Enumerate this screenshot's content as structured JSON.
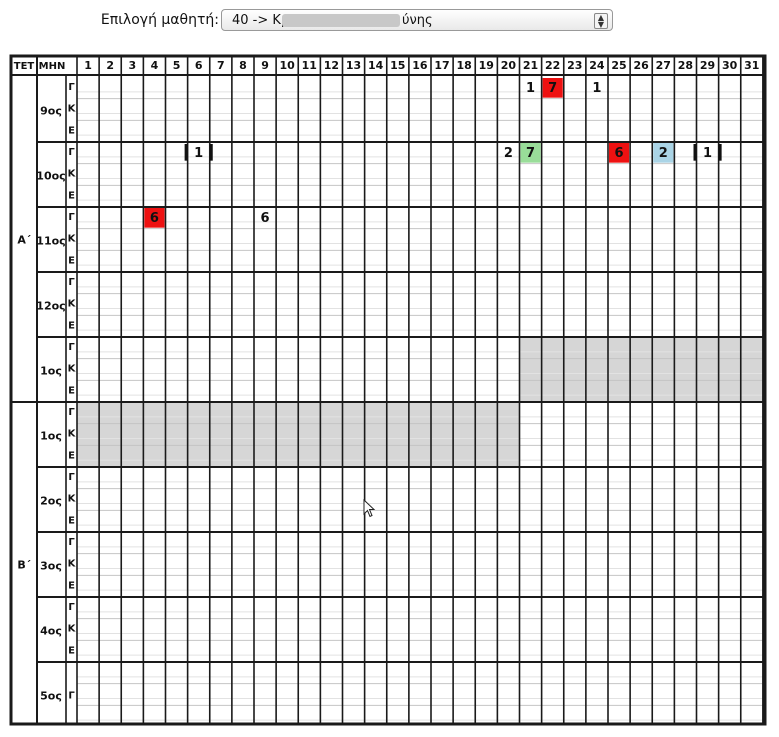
{
  "student_select": {
    "label": "Επιλογή μαθητή:",
    "value_prefix": "40 -> Κρ",
    "value_suffix": "ύνης"
  },
  "header": {
    "term": "ΤΕΤ",
    "month": "ΜΗΝ",
    "days": [
      "1",
      "2",
      "3",
      "4",
      "5",
      "6",
      "7",
      "8",
      "9",
      "10",
      "11",
      "12",
      "13",
      "14",
      "15",
      "16",
      "17",
      "18",
      "19",
      "20",
      "21",
      "22",
      "23",
      "24",
      "25",
      "26",
      "27",
      "28",
      "29",
      "30",
      "31"
    ]
  },
  "terms": [
    {
      "label": "Α΄",
      "months": [
        "9ος",
        "10ος",
        "11ος",
        "12ος",
        "1ος"
      ]
    },
    {
      "label": "Β΄",
      "months": [
        "1ος",
        "2ος",
        "3ος",
        "4ος",
        "5ος"
      ]
    }
  ],
  "sub_rows": [
    "Γ",
    "Κ",
    "Ε"
  ],
  "marks": [
    {
      "month": 0,
      "sub": 0,
      "day": 21,
      "value": "1",
      "style": "plain"
    },
    {
      "month": 0,
      "sub": 0,
      "day": 22,
      "value": "7",
      "style": "red"
    },
    {
      "month": 0,
      "sub": 0,
      "day": 24,
      "value": "1",
      "style": "plain"
    },
    {
      "month": 1,
      "sub": 0,
      "day": 6,
      "value": "1",
      "style": "bracket"
    },
    {
      "month": 1,
      "sub": 0,
      "day": 20,
      "value": "2",
      "style": "plain"
    },
    {
      "month": 1,
      "sub": 0,
      "day": 21,
      "value": "7",
      "style": "green"
    },
    {
      "month": 1,
      "sub": 0,
      "day": 25,
      "value": "6",
      "style": "red"
    },
    {
      "month": 1,
      "sub": 0,
      "day": 27,
      "value": "2",
      "style": "blue"
    },
    {
      "month": 1,
      "sub": 0,
      "day": 29,
      "value": "1",
      "style": "bracket"
    },
    {
      "month": 2,
      "sub": 0,
      "day": 4,
      "value": "6",
      "style": "red"
    },
    {
      "month": 2,
      "sub": 0,
      "day": 9,
      "value": "6",
      "style": "plain"
    }
  ],
  "shaded": [
    {
      "month": 4,
      "from_day": 21,
      "to_day": 31
    },
    {
      "month": 5,
      "from_day": 1,
      "to_day": 20
    }
  ],
  "colors": {
    "red": "#ee1111",
    "green": "#99dd99",
    "blue": "#aad4e6",
    "shade": "#d6d6d6",
    "border": "#1a1a1a"
  }
}
